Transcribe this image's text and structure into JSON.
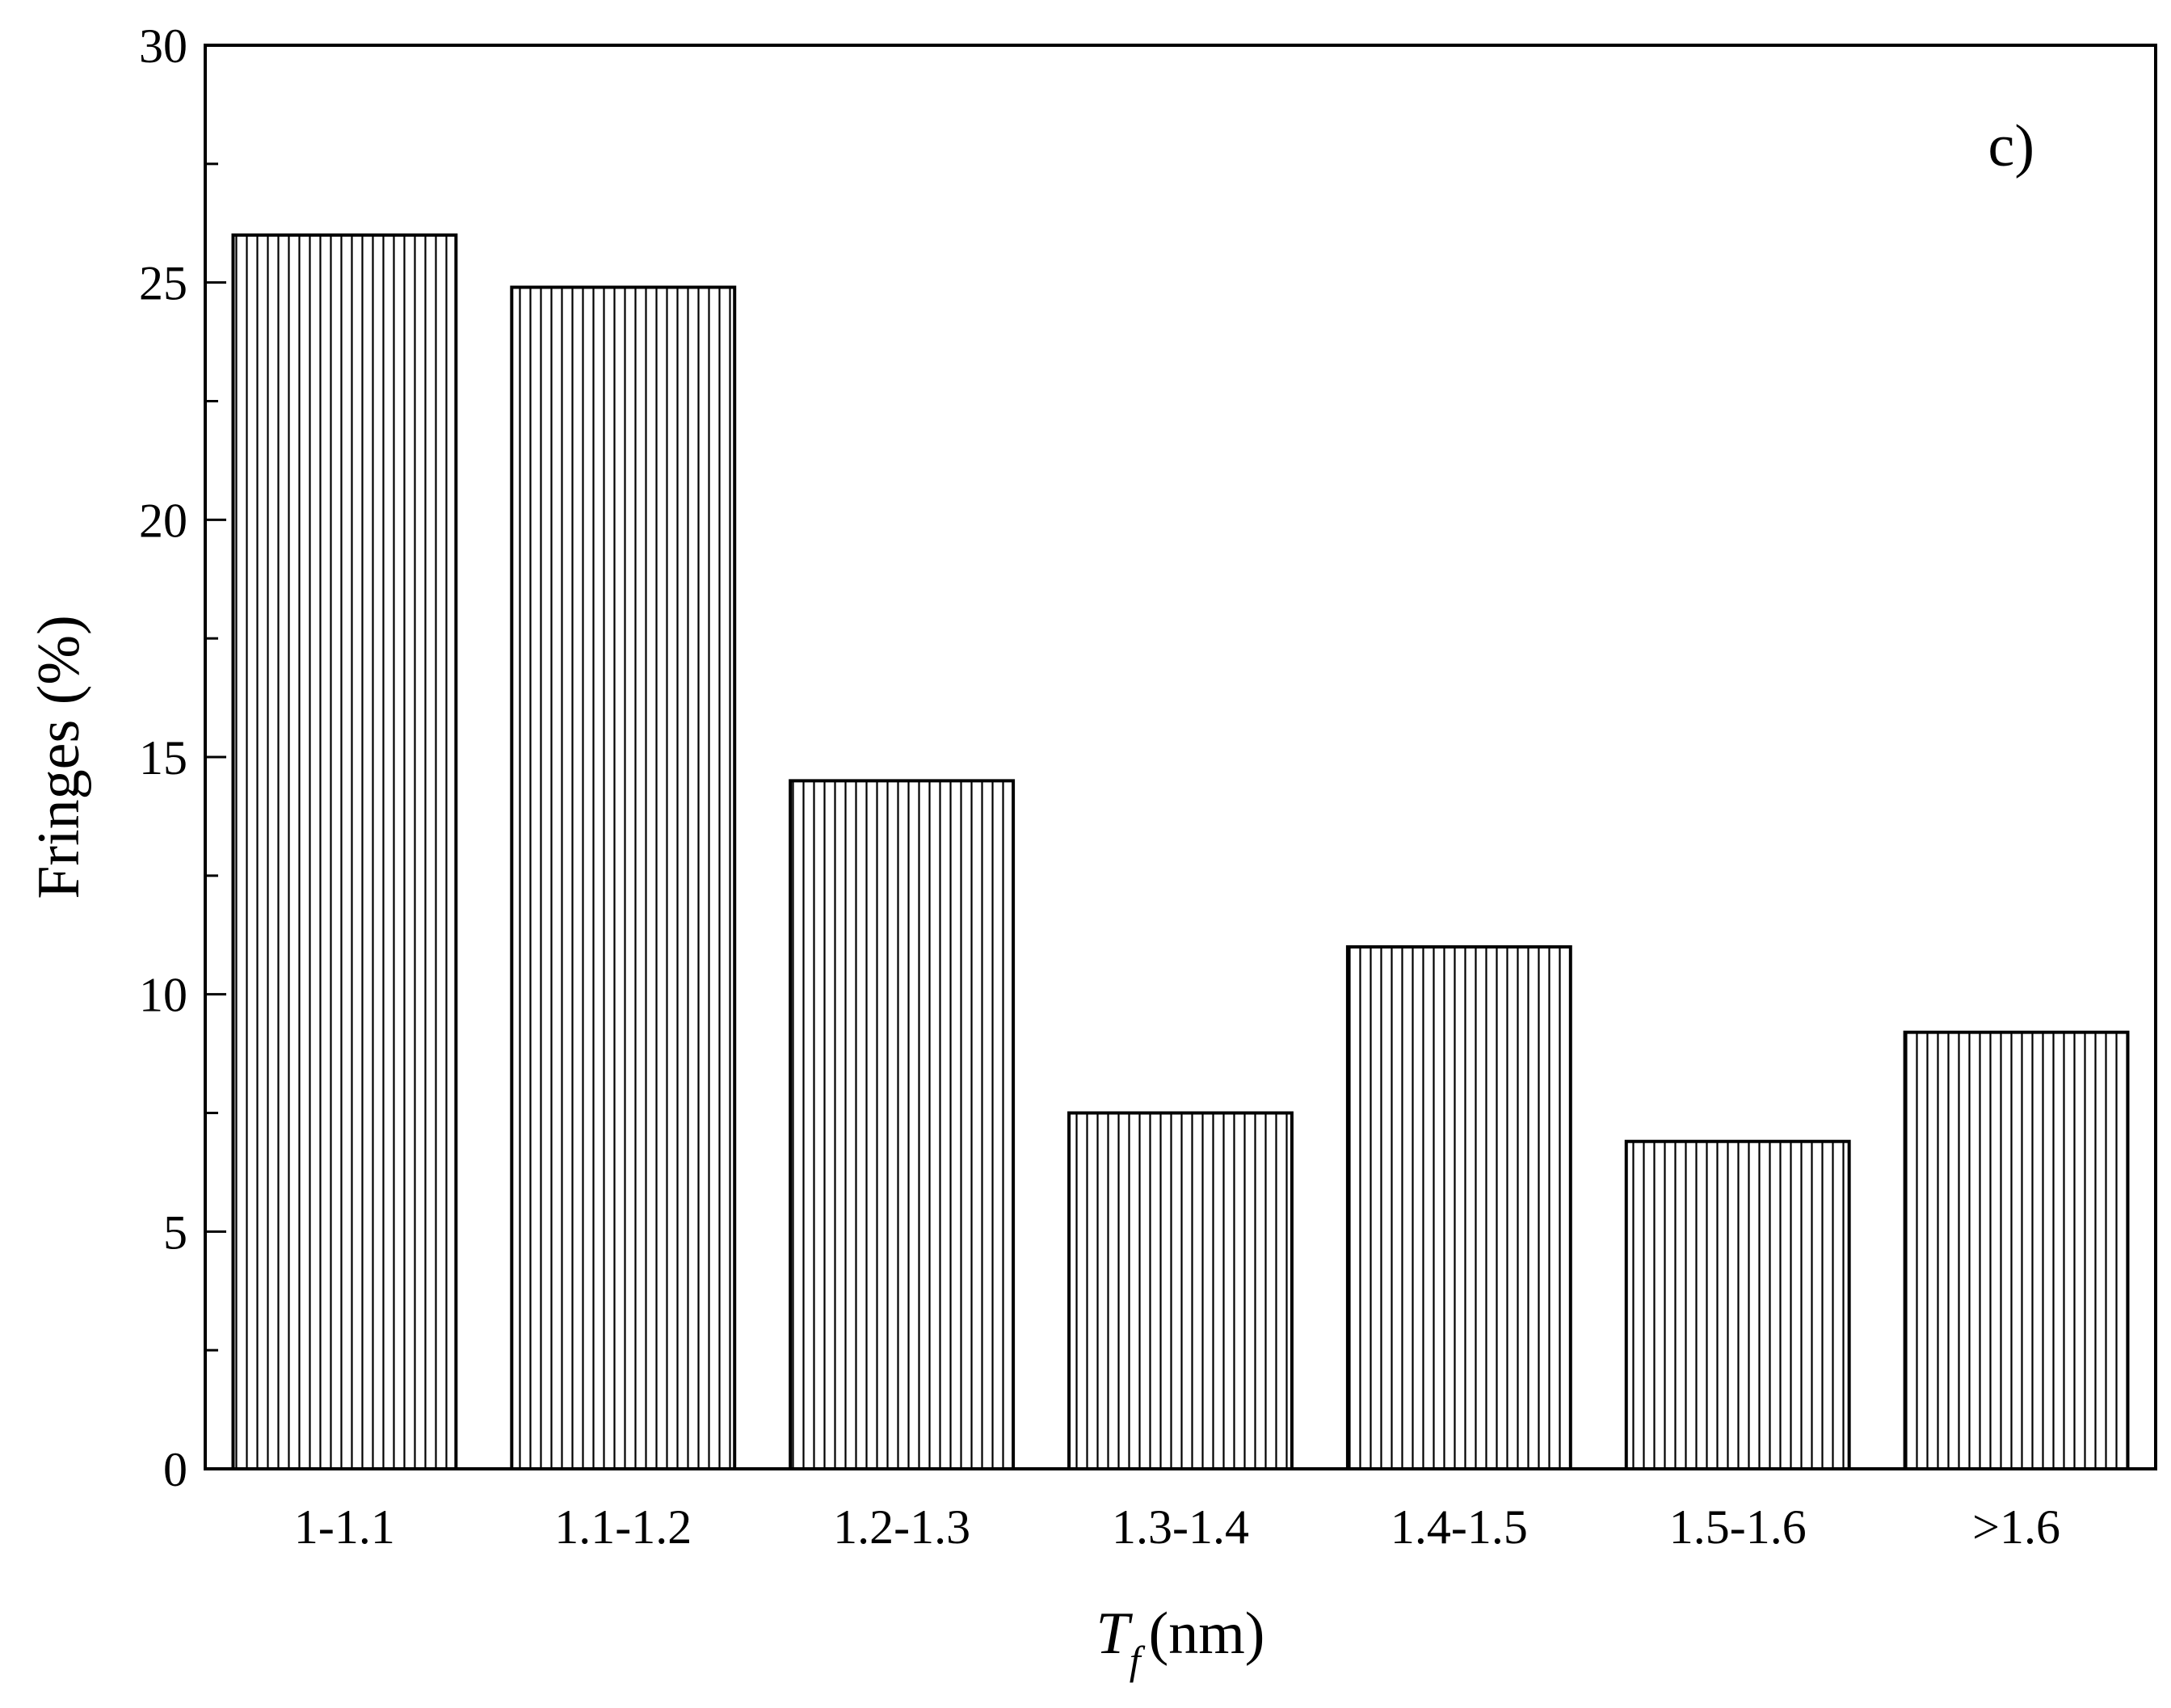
{
  "chart_data": {
    "type": "bar",
    "panel_label": "c)",
    "categories": [
      "1-1.1",
      "1.1-1.2",
      "1.2-1.3",
      "1.3-1.4",
      "1.4-1.5",
      "1.5-1.6",
      ">1.6"
    ],
    "values": [
      26.0,
      24.9,
      14.5,
      7.5,
      11.0,
      6.9,
      9.2
    ],
    "xlabel": {
      "symbol": "T",
      "subscript": "f",
      "unit": "(nm)"
    },
    "ylabel": "Fringes (%)",
    "ylim": [
      0,
      30
    ],
    "yticks": [
      0,
      5,
      10,
      15,
      20,
      25,
      30
    ],
    "grid": false,
    "bar_fill": "vertical-hatch",
    "colors": {
      "bar_stroke": "#000000",
      "bar_fill": "#ffffff",
      "axis": "#000000"
    }
  }
}
